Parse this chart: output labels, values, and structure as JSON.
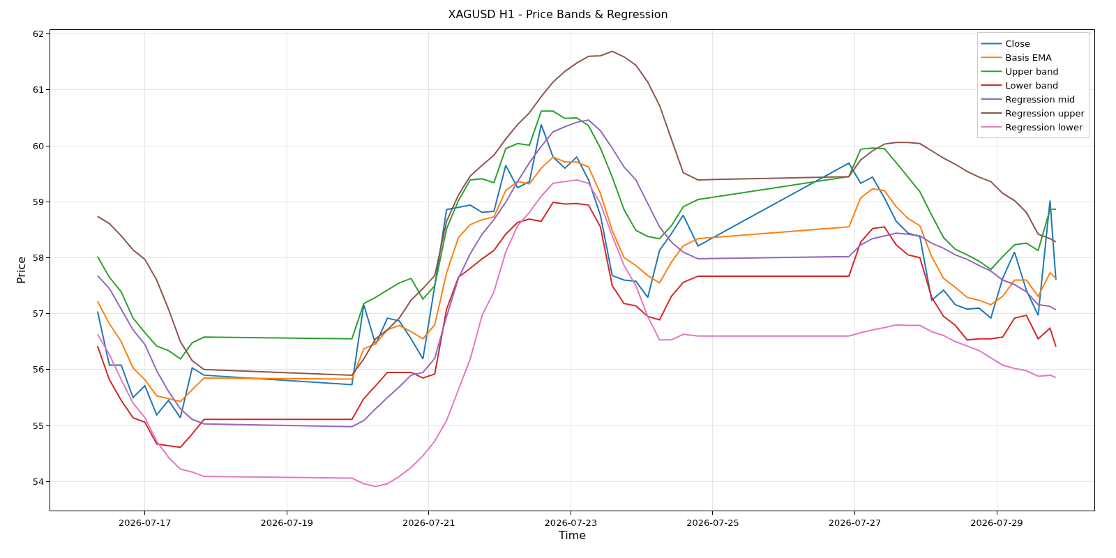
{
  "chart_data": {
    "type": "line",
    "title": "XAGUSD H1 - Price Bands & Regression",
    "xlabel": "Time",
    "ylabel": "Price",
    "x": [
      "2026-07-16T08:00",
      "2026-07-16T12:00",
      "2026-07-16T16:00",
      "2026-07-16T20:00",
      "2026-07-17T00:00",
      "2026-07-17T04:00",
      "2026-07-17T08:00",
      "2026-07-17T12:00",
      "2026-07-17T16:00",
      "2026-07-17T20:00",
      "2026-07-19T22:00",
      "2026-07-20T02:00",
      "2026-07-20T06:00",
      "2026-07-20T10:00",
      "2026-07-20T14:00",
      "2026-07-20T18:00",
      "2026-07-20T22:00",
      "2026-07-21T02:00",
      "2026-07-21T06:00",
      "2026-07-21T10:00",
      "2026-07-21T14:00",
      "2026-07-21T18:00",
      "2026-07-21T22:00",
      "2026-07-22T02:00",
      "2026-07-22T06:00",
      "2026-07-22T10:00",
      "2026-07-22T14:00",
      "2026-07-22T18:00",
      "2026-07-22T22:00",
      "2026-07-23T02:00",
      "2026-07-23T06:00",
      "2026-07-23T10:00",
      "2026-07-23T14:00",
      "2026-07-23T18:00",
      "2026-07-23T22:00",
      "2026-07-24T02:00",
      "2026-07-24T06:00",
      "2026-07-24T10:00",
      "2026-07-24T14:00",
      "2026-07-24T19:00",
      "2026-07-26T22:00",
      "2026-07-27T02:00",
      "2026-07-27T06:00",
      "2026-07-27T10:00",
      "2026-07-27T14:00",
      "2026-07-27T18:00",
      "2026-07-27T22:00",
      "2026-07-28T02:00",
      "2026-07-28T06:00",
      "2026-07-28T10:00",
      "2026-07-28T14:00",
      "2026-07-28T18:00",
      "2026-07-28T22:00",
      "2026-07-29T02:00",
      "2026-07-29T06:00",
      "2026-07-29T10:00",
      "2026-07-29T14:00",
      "2026-07-29T18:00",
      "2026-07-29T20:00"
    ],
    "series": [
      {
        "name": "Close",
        "color": "#1f77b4",
        "values": [
          57.04,
          56.08,
          56.08,
          55.5,
          55.71,
          55.19,
          55.45,
          55.14,
          56.03,
          55.9,
          55.73,
          57.16,
          56.45,
          56.92,
          56.87,
          56.55,
          56.19,
          57.5,
          58.86,
          58.9,
          58.94,
          58.81,
          58.83,
          59.65,
          59.25,
          59.36,
          60.38,
          59.8,
          59.6,
          59.8,
          59.39,
          58.76,
          57.68,
          57.6,
          57.58,
          57.29,
          58.13,
          58.43,
          58.76,
          58.21,
          59.69,
          59.33,
          59.44,
          59.07,
          58.65,
          58.44,
          58.38,
          57.24,
          57.42,
          57.16,
          57.08,
          57.1,
          56.92,
          57.63,
          58.1,
          57.42,
          56.97,
          59.02,
          57.6
        ]
      },
      {
        "name": "Basis EMA",
        "color": "#ff7f0e",
        "values": [
          57.22,
          56.82,
          56.5,
          56.03,
          55.82,
          55.53,
          55.48,
          55.43,
          55.64,
          55.85,
          55.83,
          56.37,
          56.46,
          56.71,
          56.79,
          56.68,
          56.55,
          56.8,
          57.73,
          58.36,
          58.59,
          58.68,
          58.73,
          59.2,
          59.36,
          59.32,
          59.6,
          59.8,
          59.71,
          59.71,
          59.62,
          59.15,
          58.49,
          58.0,
          57.86,
          57.68,
          57.55,
          57.92,
          58.21,
          58.34,
          58.55,
          59.07,
          59.23,
          59.2,
          58.91,
          58.7,
          58.57,
          58.02,
          57.63,
          57.47,
          57.29,
          57.24,
          57.16,
          57.31,
          57.6,
          57.6,
          57.31,
          57.73,
          57.63
        ]
      },
      {
        "name": "Upper band",
        "color": "#2ca02c",
        "values": [
          58.02,
          57.65,
          57.39,
          56.92,
          56.66,
          56.42,
          56.34,
          56.19,
          56.48,
          56.58,
          56.55,
          57.18,
          57.29,
          57.42,
          57.55,
          57.63,
          57.26,
          57.5,
          58.52,
          59.02,
          59.39,
          59.41,
          59.34,
          59.95,
          60.04,
          60.01,
          60.62,
          60.62,
          60.49,
          60.5,
          60.36,
          59.96,
          59.44,
          58.86,
          58.49,
          58.38,
          58.34,
          58.57,
          58.91,
          59.04,
          59.45,
          59.94,
          59.96,
          59.95,
          59.7,
          59.44,
          59.18,
          58.76,
          58.36,
          58.15,
          58.05,
          57.94,
          57.79,
          58.02,
          58.23,
          58.26,
          58.13,
          58.86,
          58.87
        ]
      },
      {
        "name": "Lower band",
        "color": "#d62728",
        "values": [
          56.42,
          55.82,
          55.45,
          55.14,
          55.06,
          54.67,
          54.64,
          54.61,
          54.85,
          55.11,
          55.11,
          55.48,
          55.71,
          55.95,
          55.95,
          55.95,
          55.85,
          55.92,
          57.08,
          57.65,
          57.81,
          57.98,
          58.13,
          58.42,
          58.63,
          58.69,
          58.65,
          58.99,
          58.96,
          58.97,
          58.94,
          58.55,
          57.5,
          57.18,
          57.14,
          56.95,
          56.89,
          57.31,
          57.56,
          57.67,
          57.67,
          58.28,
          58.52,
          58.55,
          58.23,
          58.05,
          58.0,
          57.29,
          56.95,
          56.79,
          56.53,
          56.55,
          56.55,
          56.58,
          56.92,
          56.97,
          56.55,
          56.74,
          56.41
        ]
      },
      {
        "name": "Regression mid",
        "color": "#9467bd",
        "values": [
          57.68,
          57.45,
          57.08,
          56.71,
          56.45,
          55.98,
          55.61,
          55.3,
          55.11,
          55.03,
          54.98,
          55.09,
          55.3,
          55.5,
          55.69,
          55.9,
          55.95,
          56.2,
          56.95,
          57.63,
          58.07,
          58.42,
          58.68,
          58.99,
          59.36,
          59.7,
          59.99,
          60.25,
          60.34,
          60.42,
          60.46,
          60.27,
          59.96,
          59.62,
          59.39,
          58.97,
          58.55,
          58.28,
          58.1,
          57.98,
          58.02,
          58.23,
          58.34,
          58.39,
          58.44,
          58.42,
          58.39,
          58.26,
          58.17,
          58.05,
          57.97,
          57.86,
          57.76,
          57.6,
          57.52,
          57.39,
          57.16,
          57.13,
          57.07
        ]
      },
      {
        "name": "Regression upper",
        "color": "#8c564b",
        "values": [
          58.74,
          58.61,
          58.39,
          58.14,
          57.97,
          57.6,
          57.08,
          56.5,
          56.16,
          56.0,
          55.9,
          56.19,
          56.55,
          56.71,
          56.92,
          57.24,
          57.45,
          57.68,
          58.65,
          59.12,
          59.46,
          59.65,
          59.83,
          60.12,
          60.38,
          60.59,
          60.88,
          61.14,
          61.33,
          61.48,
          61.6,
          61.61,
          61.69,
          61.59,
          61.44,
          61.14,
          60.72,
          60.12,
          59.52,
          59.39,
          59.45,
          59.75,
          59.91,
          60.03,
          60.06,
          60.06,
          60.04,
          59.91,
          59.78,
          59.67,
          59.54,
          59.44,
          59.36,
          59.15,
          59.02,
          58.81,
          58.42,
          58.34,
          58.28
        ]
      },
      {
        "name": "Regression lower",
        "color": "#e377c2",
        "values": [
          56.63,
          56.27,
          55.82,
          55.4,
          55.14,
          54.72,
          54.43,
          54.22,
          54.17,
          54.09,
          54.06,
          53.96,
          53.91,
          53.96,
          54.09,
          54.25,
          54.46,
          54.72,
          55.09,
          55.64,
          56.19,
          56.97,
          57.39,
          58.1,
          58.57,
          58.81,
          59.1,
          59.33,
          59.36,
          59.39,
          59.33,
          58.97,
          58.39,
          57.86,
          57.5,
          56.95,
          56.53,
          56.53,
          56.63,
          56.6,
          56.6,
          56.66,
          56.71,
          56.75,
          56.8,
          56.79,
          56.79,
          56.68,
          56.61,
          56.5,
          56.42,
          56.34,
          56.21,
          56.08,
          56.02,
          55.98,
          55.88,
          55.9,
          55.86
        ]
      }
    ],
    "xlim": [
      "2026-07-15T16:00",
      "2026-07-30T09:00"
    ],
    "xticks": [
      "2026-07-17",
      "2026-07-19",
      "2026-07-21",
      "2026-07-23",
      "2026-07-25",
      "2026-07-27",
      "2026-07-29"
    ],
    "ylim": [
      53.48,
      62.07
    ],
    "yticks": [
      54,
      55,
      56,
      57,
      58,
      59,
      60,
      61,
      62
    ],
    "grid": true,
    "legend": "top right",
    "marker": "none",
    "line_style": "solid"
  }
}
